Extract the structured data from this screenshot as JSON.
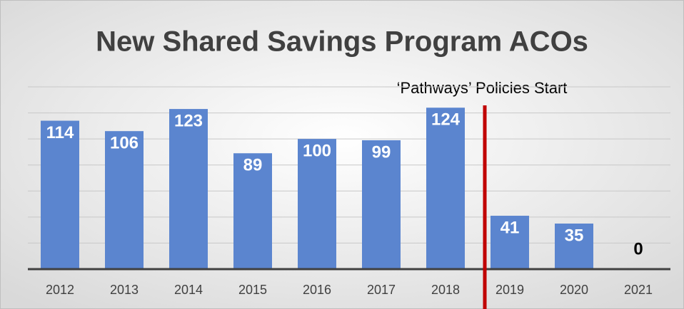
{
  "chart_data": {
    "type": "bar",
    "title": "New Shared Savings Program ACOs",
    "annotation": "‘Pathways’ Policies Start",
    "categories": [
      "2012",
      "2013",
      "2014",
      "2015",
      "2016",
      "2017",
      "2018",
      "2019",
      "2020",
      "2021"
    ],
    "values": [
      114,
      106,
      123,
      89,
      100,
      99,
      124,
      41,
      35,
      0
    ],
    "color": "#5b85cf",
    "ylim": [
      0,
      140
    ],
    "yticks": [
      0,
      20,
      40,
      60,
      80,
      100,
      120,
      140
    ],
    "grid": true
  }
}
